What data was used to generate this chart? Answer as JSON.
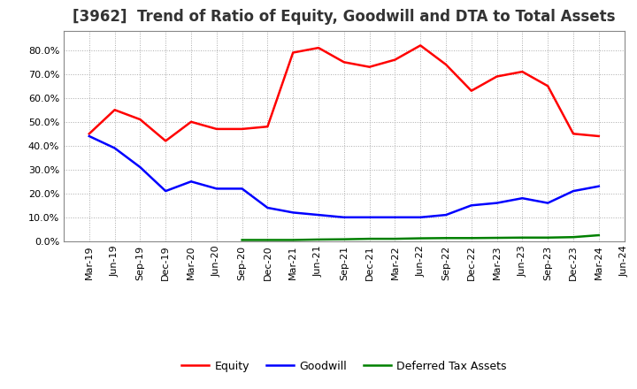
{
  "title": "[3962]  Trend of Ratio of Equity, Goodwill and DTA to Total Assets",
  "x_labels": [
    "Mar-19",
    "Jun-19",
    "Sep-19",
    "Dec-19",
    "Mar-20",
    "Jun-20",
    "Sep-20",
    "Dec-20",
    "Mar-21",
    "Jun-21",
    "Sep-21",
    "Dec-21",
    "Mar-22",
    "Jun-22",
    "Sep-22",
    "Dec-22",
    "Mar-23",
    "Jun-23",
    "Sep-23",
    "Dec-23",
    "Mar-24",
    "Jun-24"
  ],
  "equity": [
    0.45,
    0.55,
    0.51,
    0.42,
    0.5,
    0.47,
    0.47,
    0.48,
    0.79,
    0.81,
    0.75,
    0.73,
    0.76,
    0.82,
    0.74,
    0.63,
    0.69,
    0.71,
    0.65,
    0.45,
    0.44,
    null
  ],
  "goodwill": [
    0.44,
    0.39,
    0.31,
    0.21,
    0.25,
    0.22,
    0.22,
    0.14,
    0.12,
    0.11,
    0.1,
    0.1,
    0.1,
    0.1,
    0.11,
    0.15,
    0.16,
    0.18,
    0.16,
    0.21,
    0.23,
    null
  ],
  "dta": [
    null,
    null,
    null,
    null,
    null,
    null,
    0.005,
    0.005,
    0.005,
    0.007,
    0.008,
    0.01,
    0.01,
    0.012,
    0.013,
    0.013,
    0.014,
    0.015,
    0.015,
    0.017,
    0.025,
    null
  ],
  "equity_color": "#FF0000",
  "goodwill_color": "#0000FF",
  "dta_color": "#008000",
  "bg_color": "#FFFFFF",
  "plot_bg_color": "#FFFFFF",
  "grid_color": "#AAAAAA",
  "ylim": [
    0.0,
    0.88
  ],
  "yticks": [
    0.0,
    0.1,
    0.2,
    0.3,
    0.4,
    0.5,
    0.6,
    0.7,
    0.8
  ],
  "legend_labels": [
    "Equity",
    "Goodwill",
    "Deferred Tax Assets"
  ],
  "title_fontsize": 12,
  "tick_fontsize": 8,
  "legend_fontsize": 9,
  "linewidth": 1.8
}
